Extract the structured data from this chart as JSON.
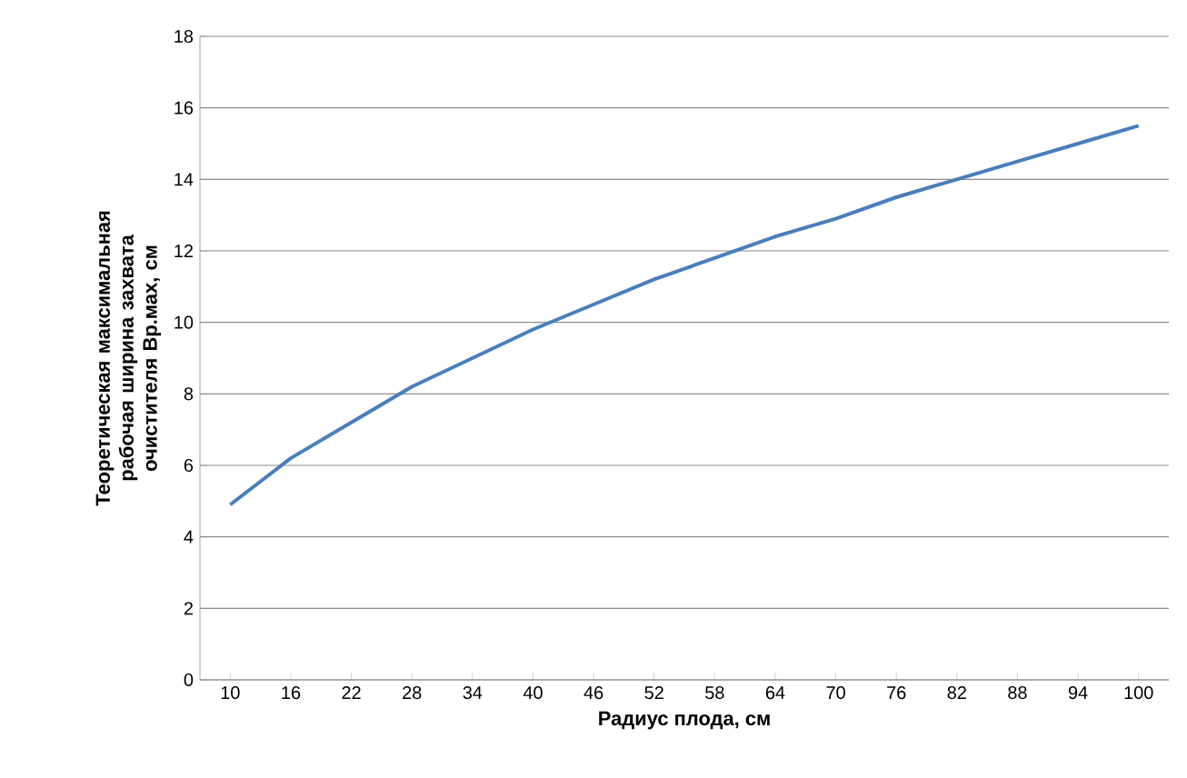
{
  "chart_data": {
    "type": "line",
    "xlabel": "Радиус плода, см",
    "ylabel": "Теоретическая максимальная рабочая ширина захвата очистителя Вр.мах, см",
    "categories": [
      "10",
      "16",
      "22",
      "28",
      "34",
      "40",
      "46",
      "52",
      "58",
      "64",
      "70",
      "76",
      "82",
      "88",
      "94",
      "100"
    ],
    "series": [
      {
        "color": "#4a7ebb",
        "values": [
          4.9,
          6.2,
          7.2,
          8.2,
          9.0,
          9.8,
          10.5,
          11.2,
          11.8,
          12.4,
          12.9,
          13.5,
          14.0,
          14.5,
          15.0,
          15.5
        ]
      }
    ],
    "ylim": [
      0,
      18
    ],
    "yticks": [
      0,
      2,
      4,
      6,
      8,
      10,
      12,
      14,
      16,
      18
    ],
    "grid": "y",
    "marker": "none",
    "line_style": "solid"
  }
}
